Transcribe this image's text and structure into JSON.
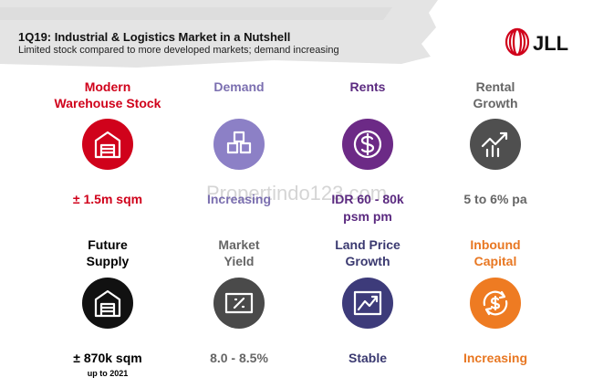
{
  "header": {
    "title": "1Q19: Industrial & Logistics Market in a Nutshell",
    "subtitle": "Limited stock compared to more developed markets; demand increasing",
    "logo": "JLL"
  },
  "watermark": "Propertindo123.com",
  "tiles": [
    {
      "label": [
        "Modern",
        "Warehouse Stock"
      ],
      "value": [
        "± 1.5m sqm"
      ]
    },
    {
      "label": [
        "Demand"
      ],
      "value": [
        "Increasing"
      ]
    },
    {
      "label": [
        "Rents"
      ],
      "value": [
        "IDR 60 - 80k",
        "psm pm"
      ]
    },
    {
      "label": [
        "Rental",
        "Growth"
      ],
      "value": [
        "5 to 6% pa"
      ]
    },
    {
      "label": [
        "Future",
        "Supply"
      ],
      "value": [
        "± 870k sqm"
      ],
      "note": "up to 2021"
    },
    {
      "label": [
        "Market",
        "Yield"
      ],
      "value": [
        "8.0 - 8.5%"
      ]
    },
    {
      "label": [
        "Land Price",
        "Growth"
      ],
      "value": [
        "Stable"
      ]
    },
    {
      "label": [
        "Inbound",
        "Capital"
      ],
      "value": [
        "Increasing"
      ]
    }
  ]
}
